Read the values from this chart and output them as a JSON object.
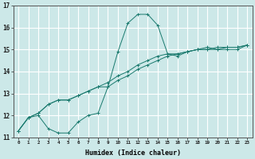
{
  "xlabel": "Humidex (Indice chaleur)",
  "ylabel": "",
  "bg_color": "#cce8e8",
  "grid_color": "#ffffff",
  "line_color": "#1a7a6e",
  "xlim": [
    -0.5,
    23.5
  ],
  "ylim": [
    11,
    17
  ],
  "yticks": [
    11,
    12,
    13,
    14,
    15,
    16,
    17
  ],
  "xticks": [
    0,
    1,
    2,
    3,
    4,
    5,
    6,
    7,
    8,
    9,
    10,
    11,
    12,
    13,
    14,
    15,
    16,
    17,
    18,
    19,
    20,
    21,
    22,
    23
  ],
  "xtick_labels": [
    "0",
    "1",
    "2",
    "3",
    "4",
    "5",
    "6",
    "7",
    "8",
    "9",
    "10",
    "11",
    "12",
    "13",
    "14",
    "15",
    "16",
    "17",
    "18",
    "19",
    "20",
    "21",
    "22",
    "23"
  ],
  "series": [
    {
      "x": [
        0,
        1,
        2,
        3,
        4,
        5,
        6,
        7,
        8,
        9,
        10,
        11,
        12,
        13,
        14,
        15,
        16,
        17,
        18,
        19,
        20,
        21,
        22,
        23
      ],
      "y": [
        11.3,
        11.9,
        12.0,
        11.4,
        11.2,
        11.2,
        11.7,
        12.0,
        12.1,
        13.3,
        14.9,
        16.2,
        16.6,
        16.6,
        16.1,
        14.8,
        14.7,
        14.9,
        15.0,
        15.1,
        15.0,
        15.0,
        15.0,
        15.2
      ]
    },
    {
      "x": [
        0,
        1,
        2,
        3,
        4,
        5,
        6,
        7,
        8,
        9,
        10,
        11,
        12,
        13,
        14,
        15,
        16,
        17,
        18,
        19,
        20,
        21,
        22,
        23
      ],
      "y": [
        11.3,
        11.9,
        12.1,
        12.5,
        12.7,
        12.7,
        12.9,
        13.1,
        13.3,
        13.3,
        13.6,
        13.8,
        14.1,
        14.3,
        14.5,
        14.7,
        14.8,
        14.9,
        15.0,
        15.0,
        15.0,
        15.1,
        15.1,
        15.2
      ]
    },
    {
      "x": [
        0,
        1,
        2,
        3,
        4,
        5,
        6,
        7,
        8,
        9,
        10,
        11,
        12,
        13,
        14,
        15,
        16,
        17,
        18,
        19,
        20,
        21,
        22,
        23
      ],
      "y": [
        11.3,
        11.9,
        12.1,
        12.5,
        12.7,
        12.7,
        12.9,
        13.1,
        13.3,
        13.5,
        13.8,
        14.0,
        14.3,
        14.5,
        14.7,
        14.8,
        14.8,
        14.9,
        15.0,
        15.0,
        15.1,
        15.1,
        15.1,
        15.2
      ]
    }
  ]
}
